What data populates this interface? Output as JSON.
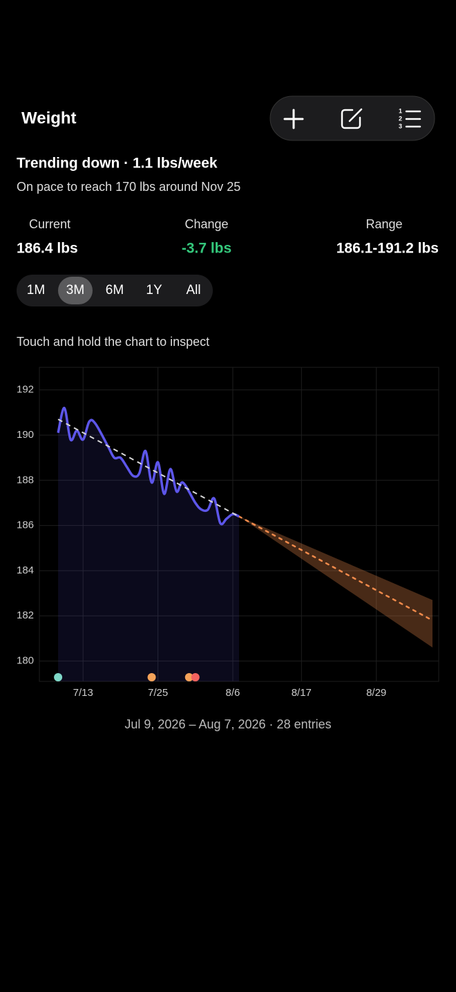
{
  "header": {
    "title": "Weight"
  },
  "summary": {
    "headline": "Trending down · 1.1 lbs/week",
    "subtitle": "On pace to reach 170 lbs around Nov 25"
  },
  "stats": [
    {
      "label": "Current",
      "value": "186.4 lbs"
    },
    {
      "label": "Change",
      "value": "-3.7 lbs"
    },
    {
      "label": "Range",
      "value": "186.1-191.2 lbs"
    }
  ],
  "ranges": {
    "options": [
      "1M",
      "3M",
      "6M",
      "1Y",
      "All"
    ],
    "selected": "3M"
  },
  "hint": "Touch and hold the chart to inspect",
  "chart_data": {
    "type": "line",
    "x": [
      "2026-07-09",
      "2026-07-10",
      "2026-07-11",
      "2026-07-12",
      "2026-07-13",
      "2026-07-14",
      "2026-07-15",
      "2026-07-17",
      "2026-07-18",
      "2026-07-19",
      "2026-07-20",
      "2026-07-21",
      "2026-07-22",
      "2026-07-23",
      "2026-07-24",
      "2026-07-25",
      "2026-07-26",
      "2026-07-27",
      "2026-07-28",
      "2026-07-29",
      "2026-07-31",
      "2026-08-01",
      "2026-08-02",
      "2026-08-03",
      "2026-08-04",
      "2026-08-05",
      "2026-08-06",
      "2026-08-07"
    ],
    "values": [
      190.1,
      191.2,
      189.8,
      190.2,
      189.8,
      190.6,
      190.5,
      189.5,
      189.0,
      189.0,
      188.6,
      188.2,
      188.3,
      189.3,
      187.9,
      188.8,
      187.4,
      188.5,
      187.5,
      187.9,
      187.0,
      186.7,
      186.7,
      187.2,
      186.1,
      186.3,
      186.5,
      186.4
    ],
    "color": "#5d56ea",
    "trend": {
      "x": [
        "2026-07-09",
        "2026-08-07"
      ],
      "values": [
        190.7,
        186.4
      ],
      "color": "#d8d8d8"
    },
    "forecast": {
      "x": [
        "2026-08-07",
        "2026-09-07"
      ],
      "values": [
        186.4,
        181.8
      ],
      "upper": [
        186.4,
        182.7
      ],
      "lower": [
        186.4,
        180.6
      ],
      "color": "#f08a4b"
    },
    "markers": [
      {
        "x": "2026-07-09",
        "color": "#7fd8c8"
      },
      {
        "x": "2026-07-24",
        "color": "#f4a259"
      },
      {
        "x": "2026-07-30",
        "color": "#f4a259"
      },
      {
        "x": "2026-07-31",
        "color": "#f2635f"
      }
    ],
    "xlim": [
      "2026-07-06",
      "2026-09-08"
    ],
    "xticks": [
      {
        "value": "2026-07-13",
        "label": "7/13"
      },
      {
        "value": "2026-07-25",
        "label": "7/25"
      },
      {
        "value": "2026-08-06",
        "label": "8/6"
      },
      {
        "value": "2026-08-17",
        "label": "8/17"
      },
      {
        "value": "2026-08-29",
        "label": "8/29"
      }
    ],
    "ylim": [
      179.1,
      193
    ],
    "yticks": [
      180,
      182,
      184,
      186,
      188,
      190,
      192
    ],
    "grid": true
  },
  "footer": "Jul 9, 2026 – Aug 7, 2026 · 28 entries"
}
